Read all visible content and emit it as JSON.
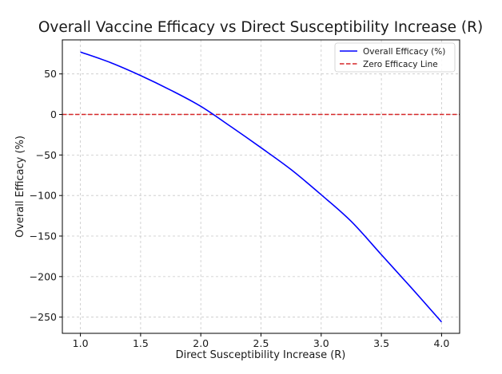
{
  "chart_data": {
    "type": "line",
    "title": "Overall Vaccine Efficacy vs Direct Susceptibility Increase (R)",
    "xlabel": "Direct Susceptibility Increase (R)",
    "ylabel": "Overall Efficacy (%)",
    "xlim": [
      0.85,
      4.15
    ],
    "ylim": [
      -270,
      92
    ],
    "grid": true,
    "legend_position": "top-right",
    "x_ticks": [
      1.0,
      1.5,
      2.0,
      2.5,
      3.0,
      3.5,
      4.0
    ],
    "x_tick_labels": [
      "1.0",
      "1.5",
      "2.0",
      "2.5",
      "3.0",
      "3.5",
      "4.0"
    ],
    "y_ticks": [
      50,
      0,
      -50,
      -100,
      -150,
      -200,
      -250
    ],
    "y_tick_labels": [
      "50",
      "0",
      "−50",
      "−100",
      "−150",
      "−200",
      "−250"
    ],
    "series": [
      {
        "name": "Overall Efficacy (%)",
        "color": "#0000ff",
        "style": "solid",
        "x": [
          1.0,
          1.25,
          1.5,
          1.75,
          2.0,
          2.25,
          2.5,
          2.75,
          3.0,
          3.25,
          3.5,
          3.75,
          4.0
        ],
        "y": [
          77,
          64,
          48,
          30,
          10,
          -15,
          -41,
          -68,
          -99,
          -132,
          -173,
          -214,
          -256
        ]
      },
      {
        "name": "Zero Efficacy Line",
        "color": "#d62728",
        "style": "dashed",
        "x": [
          0.85,
          4.15
        ],
        "y": [
          0,
          0
        ]
      }
    ]
  }
}
